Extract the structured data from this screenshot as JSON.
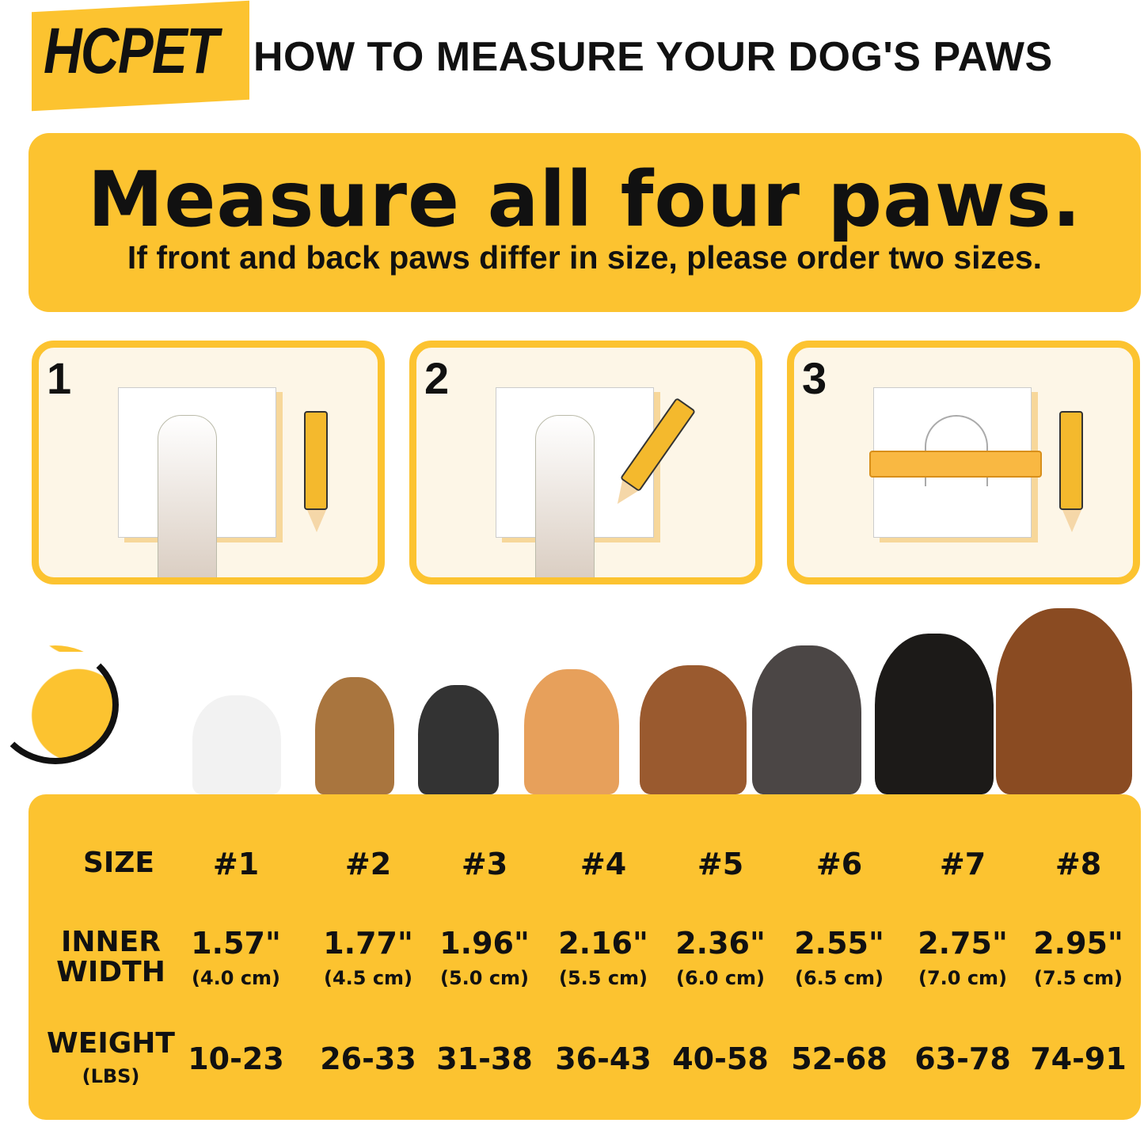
{
  "brand": "HCPET",
  "header": {
    "title": "HOW TO MEASURE YOUR DOG'S PAWS"
  },
  "banner": {
    "heading": "Measure all four paws.",
    "subtext": "If front and back paws differ in size, please order two sizes."
  },
  "steps": [
    {
      "number": "1"
    },
    {
      "number": "2"
    },
    {
      "number": "3"
    }
  ],
  "colors": {
    "accent": "#fcc330",
    "panel": "#fdf6e7"
  },
  "table": {
    "size_label": "SIZE",
    "width_label": [
      "INNER",
      "WIDTH"
    ],
    "weight_label": "WEIGHT",
    "weight_unit": "(LBS)",
    "sizes": [
      "#1",
      "#2",
      "#3",
      "#4",
      "#5",
      "#6",
      "#7",
      "#8"
    ],
    "widths_in": [
      "1.57\"",
      "1.77\"",
      "1.96\"",
      "2.16\"",
      "2.36\"",
      "2.55\"",
      "2.75\"",
      "2.95\""
    ],
    "widths_cm": [
      "(4.0 cm)",
      "(4.5 cm)",
      "(5.0 cm)",
      "(5.5 cm)",
      "(6.0 cm)",
      "(6.5 cm)",
      "(7.0 cm)",
      "(7.5 cm)"
    ],
    "weights": [
      "10-23",
      "26-33",
      "31-38",
      "36-43",
      "40-58",
      "52-68",
      "63-78",
      "74-91"
    ]
  }
}
